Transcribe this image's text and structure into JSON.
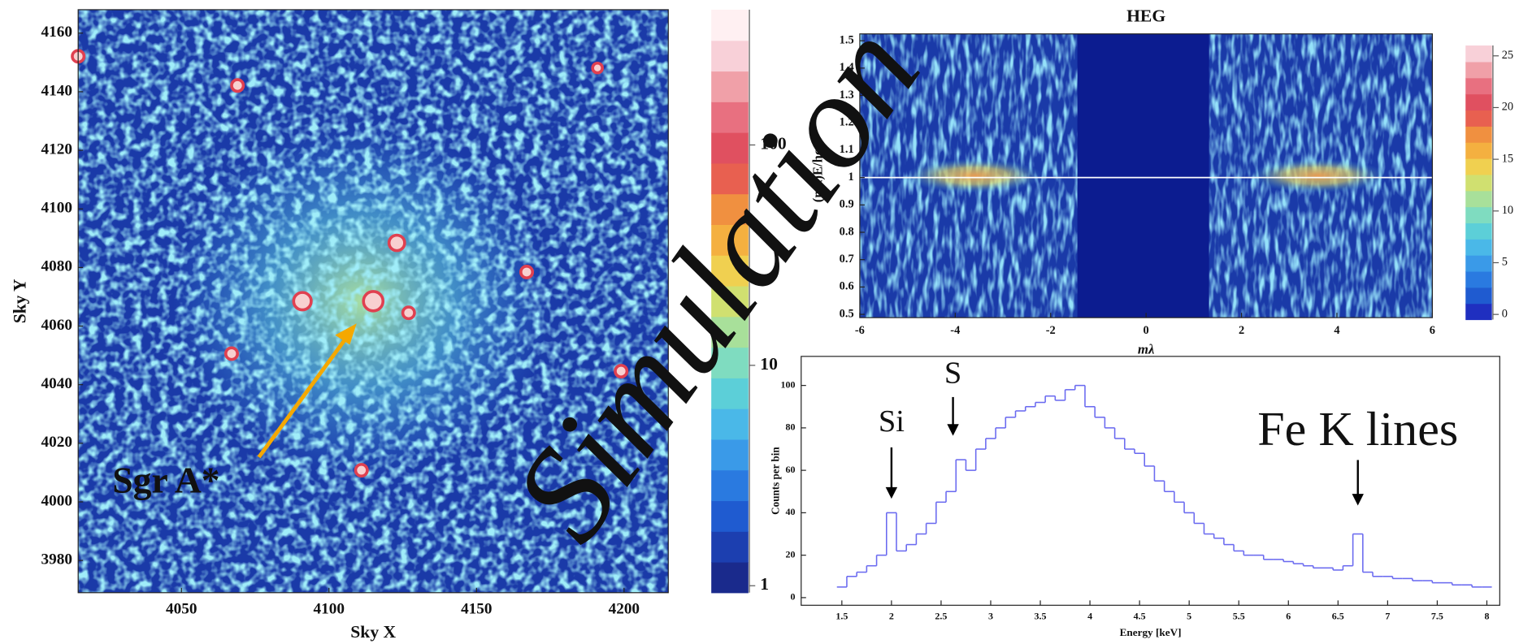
{
  "chart_data": [
    {
      "type": "image",
      "xlabel": "Sky X",
      "ylabel": "Sky Y",
      "xlim": [
        4015,
        4215
      ],
      "xticks": [
        4050,
        4100,
        4150,
        4200
      ],
      "ylim": [
        3969,
        4168
      ],
      "yticks": [
        3980,
        4000,
        4020,
        4040,
        4060,
        4080,
        4100,
        4120,
        4140,
        4160
      ],
      "annotation": "Sgr A*",
      "annotation_color": "#f5a800"
    },
    {
      "type": "colorbar",
      "log": true,
      "ylim": [
        0.93,
        411
      ],
      "yticks": [
        1,
        10,
        100
      ],
      "colors": [
        "#1a2a8c",
        "#1c3fb0",
        "#1f5bd0",
        "#2a7ae0",
        "#3a9ae8",
        "#4ab8e8",
        "#5ccfd8",
        "#7fdcc0",
        "#a8e09a",
        "#d0e070",
        "#f0d050",
        "#f4b040",
        "#f09040",
        "#e86050",
        "#e05060",
        "#e87080",
        "#f0a0a8",
        "#f8d0d8",
        "#fff0f2"
      ]
    },
    {
      "type": "image",
      "title": "HEG",
      "xlabel": "mλ",
      "ylabel": "(mλ)E/hc",
      "xlim": [
        -6,
        6
      ],
      "xticks": [
        -6,
        -4,
        -2,
        0,
        2,
        4,
        6
      ],
      "ylim": [
        0.488,
        1.525
      ],
      "yticks": [
        0.5,
        0.6,
        0.7,
        0.8,
        0.9,
        1,
        1.1,
        1.2,
        1.3,
        1.4,
        1.5
      ],
      "hline": 1,
      "hline_color": "#ffffff"
    },
    {
      "type": "colorbar",
      "log": false,
      "ylim": [
        -0.5,
        26
      ],
      "yticks": [
        0,
        5,
        10,
        15,
        20,
        25
      ],
      "colors": [
        "#1f2fc0",
        "#1f5bd0",
        "#2a7ae0",
        "#3a9ae8",
        "#4ab8e8",
        "#5ccfd8",
        "#7fdcc0",
        "#a8e09a",
        "#d0e070",
        "#f0d050",
        "#f4b040",
        "#f09040",
        "#e86050",
        "#e05060",
        "#e87080",
        "#f0a0a8",
        "#f8d0d8"
      ]
    },
    {
      "type": "line",
      "xlabel": "Energy [keV]",
      "ylabel": "Counts per bin",
      "color": "#6a6af0",
      "xlim": [
        1.09,
        8.13
      ],
      "xticks": [
        1.5,
        2,
        2.5,
        3,
        3.5,
        4,
        4.5,
        5,
        5.5,
        6,
        6.5,
        7,
        7.5,
        8
      ],
      "ylim": [
        -3.6,
        113.7
      ],
      "yticks": [
        0,
        20,
        40,
        60,
        80,
        100
      ],
      "x": [
        1.5,
        1.6,
        1.7,
        1.8,
        1.9,
        2.0,
        2.1,
        2.2,
        2.3,
        2.4,
        2.5,
        2.6,
        2.7,
        2.8,
        2.9,
        3.0,
        3.1,
        3.2,
        3.3,
        3.4,
        3.5,
        3.6,
        3.7,
        3.8,
        3.9,
        4.0,
        4.1,
        4.2,
        4.3,
        4.4,
        4.5,
        4.6,
        4.7,
        4.8,
        4.9,
        5.0,
        5.1,
        5.2,
        5.3,
        5.4,
        5.5,
        5.6,
        5.7,
        5.8,
        5.9,
        6.0,
        6.1,
        6.2,
        6.3,
        6.4,
        6.5,
        6.6,
        6.7,
        6.8,
        6.9,
        7.0,
        7.1,
        7.2,
        7.3,
        7.4,
        7.5,
        7.6,
        7.7,
        7.8,
        7.9,
        8.0
      ],
      "values": [
        5,
        10,
        12,
        15,
        20,
        40,
        22,
        25,
        30,
        35,
        45,
        50,
        65,
        60,
        70,
        75,
        80,
        85,
        88,
        90,
        92,
        95,
        93,
        98,
        100,
        90,
        85,
        80,
        75,
        70,
        68,
        62,
        55,
        50,
        45,
        40,
        35,
        30,
        28,
        25,
        22,
        20,
        20,
        18,
        18,
        17,
        16,
        15,
        14,
        14,
        13,
        15,
        30,
        12,
        10,
        10,
        9,
        9,
        8,
        8,
        7,
        7,
        6,
        6,
        5,
        5
      ],
      "annotations": [
        {
          "text": "Si",
          "x": 2.0
        },
        {
          "text": "S",
          "x": 2.62
        },
        {
          "text": "Fe K lines",
          "x": 6.7
        }
      ]
    }
  ],
  "watermark": "Simulation",
  "watermark_color": "#f08a00"
}
